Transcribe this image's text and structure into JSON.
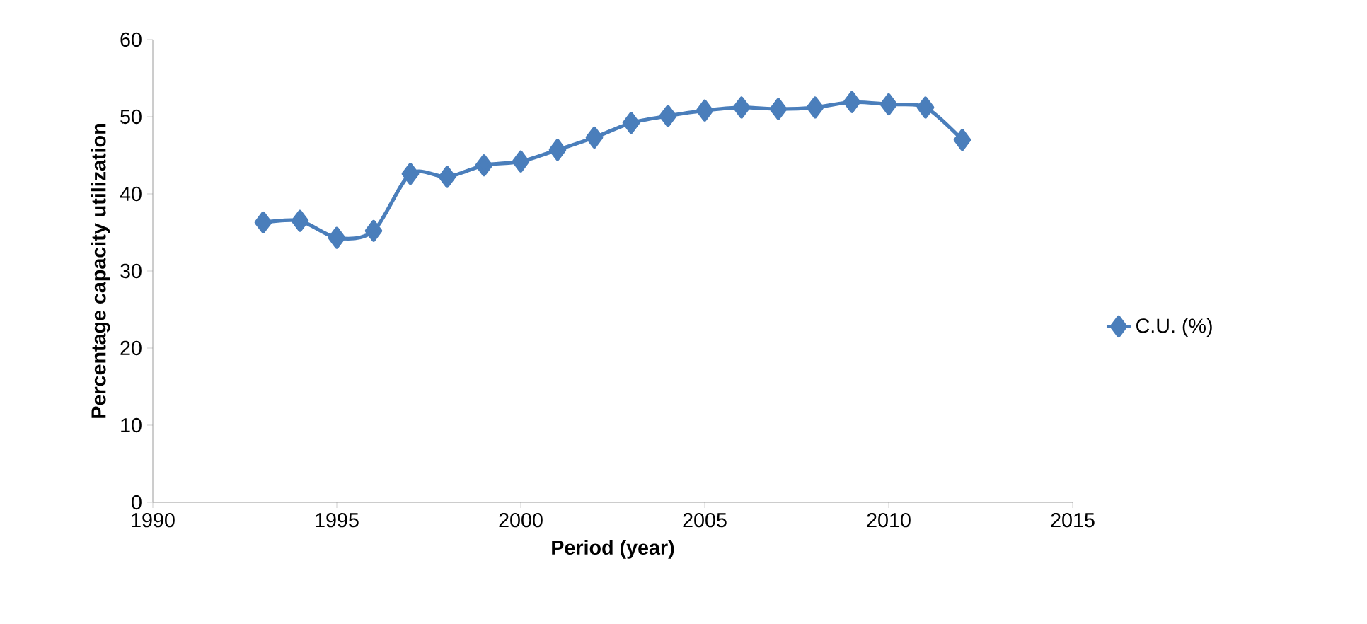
{
  "chart_data": {
    "type": "line",
    "xlabel": "Period (year)",
    "ylabel": "Percentage capacity utilization",
    "x": [
      1993,
      1994,
      1995,
      1996,
      1997,
      1998,
      1999,
      2000,
      2001,
      2002,
      2003,
      2004,
      2005,
      2006,
      2007,
      2008,
      2009,
      2010,
      2011,
      2012
    ],
    "series": [
      {
        "name": "C.U. (%)",
        "color": "#4a7ebb",
        "values": [
          36.3,
          36.5,
          34.3,
          35.2,
          42.6,
          42.2,
          43.7,
          44.2,
          45.7,
          47.3,
          49.2,
          50.1,
          50.8,
          51.2,
          51.0,
          51.2,
          51.9,
          51.6,
          51.2,
          47.0
        ]
      }
    ],
    "xlim": [
      1990,
      2015
    ],
    "ylim": [
      0,
      60
    ],
    "xticks": [
      1990,
      1995,
      2000,
      2005,
      2010,
      2015
    ],
    "yticks": [
      0,
      10,
      20,
      30,
      40,
      50,
      60
    ],
    "marker": "diamond",
    "line_style": "solid",
    "legend": "right",
    "grid": false
  }
}
